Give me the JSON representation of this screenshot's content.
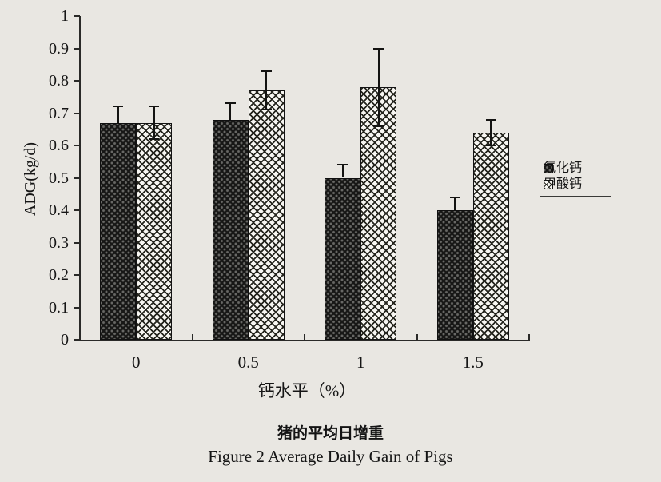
{
  "figure": {
    "caption_zh": "猪的平均日增重",
    "caption_en": "Figure 2 Average Daily Gain of Pigs"
  },
  "chart_data": {
    "type": "bar",
    "title": "猪的平均日增重",
    "subtitle": "Figure 2 Average Daily Gain of Pigs",
    "xlabel": "钙水平（%）",
    "ylabel": "ADG(kg/d)",
    "categories": [
      "0",
      "0.5",
      "1",
      "1.5"
    ],
    "y_ticks": [
      "0",
      "0.1",
      "0.2",
      "0.3",
      "0.4",
      "0.5",
      "0.6",
      "0.7",
      "0.8",
      "0.9",
      "1"
    ],
    "ylim": [
      0,
      1
    ],
    "grid": false,
    "legend_position": "right",
    "series": [
      {
        "name": "氯化钙",
        "values": [
          0.67,
          0.68,
          0.5,
          0.4
        ],
        "errors": [
          0.05,
          0.05,
          0.04,
          0.04
        ],
        "style": "solid-dark",
        "error_display": "upper"
      },
      {
        "name": "甲酸钙",
        "values": [
          0.67,
          0.77,
          0.78,
          0.64
        ],
        "errors": [
          0.05,
          0.06,
          0.12,
          0.04
        ],
        "style": "diamond-hatch",
        "error_display": "both"
      }
    ],
    "colors": {
      "ink": "#1a1a1a",
      "background": "#e9e7e2",
      "bar_dark": "#171716",
      "bar_light": "#f7f6f2"
    }
  }
}
